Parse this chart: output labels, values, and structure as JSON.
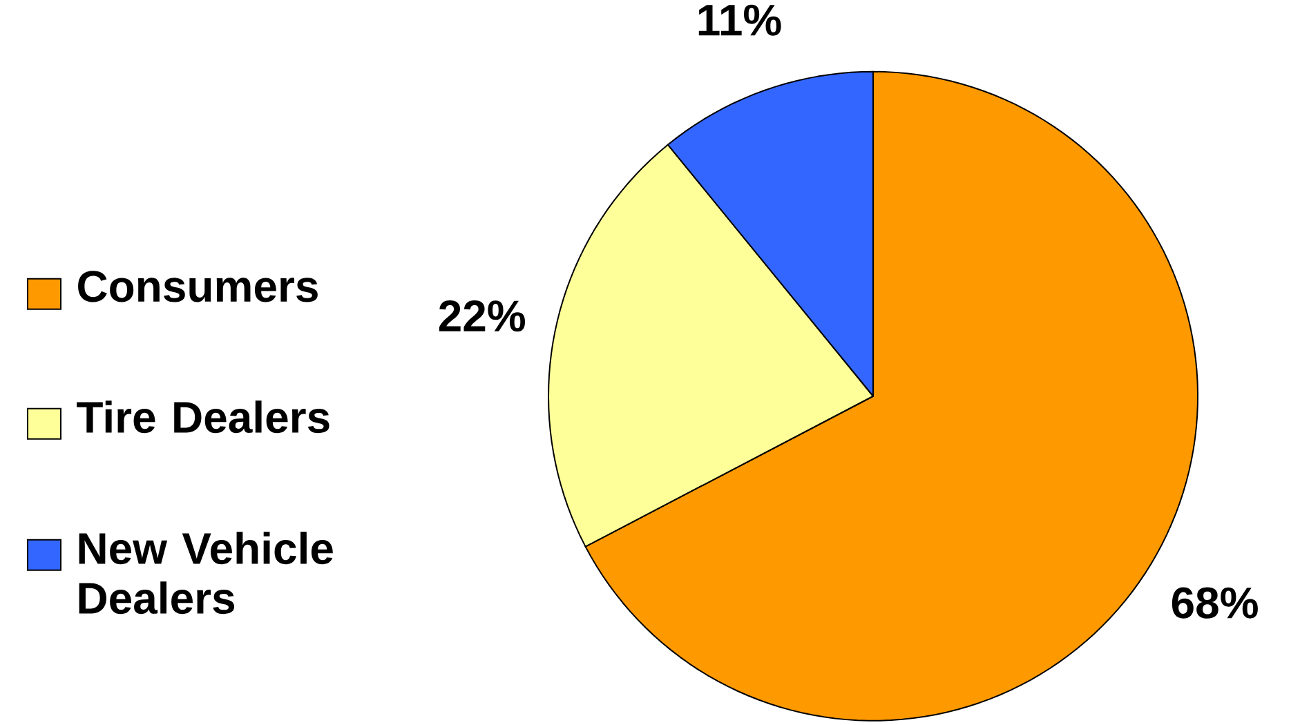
{
  "chart_data": {
    "type": "pie",
    "categories": [
      "Consumers",
      "Tire Dealers",
      "New Vehicle Dealers"
    ],
    "values": [
      68,
      22,
      11
    ],
    "value_labels": [
      "68%",
      "22%",
      "11%"
    ],
    "colors": [
      "#ff9900",
      "#ffff99",
      "#3366ff"
    ],
    "legend": "left"
  }
}
